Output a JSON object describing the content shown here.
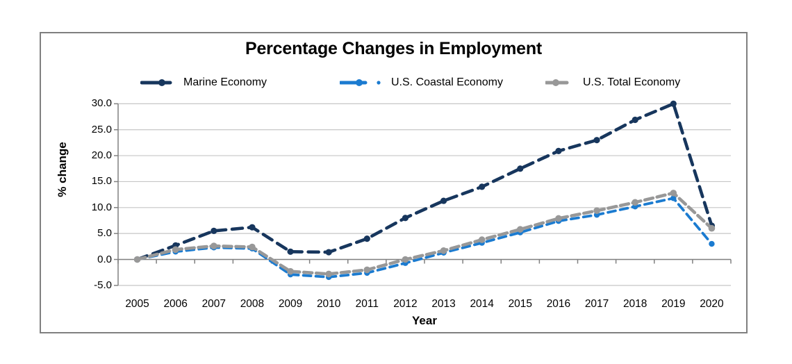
{
  "figure": {
    "title": "Percentage Changes in Employment",
    "x_axis_title": "Year",
    "y_axis_title": "% change"
  },
  "colors": {
    "marine": "#17365d",
    "coastal": "#1b7bd0",
    "total": "#989898",
    "gridline": "#c6c6c6",
    "axis": "#808080",
    "text": "#000000"
  },
  "chart_data": {
    "type": "line",
    "title": "Percentage Changes in Employment",
    "xlabel": "Year",
    "ylabel": "% change",
    "x": [
      "2005",
      "2006",
      "2007",
      "2008",
      "2009",
      "2010",
      "2011",
      "2012",
      "2013",
      "2014",
      "2015",
      "2016",
      "2017",
      "2018",
      "2019",
      "2020"
    ],
    "y_ticks": [
      "30.0",
      "25.0",
      "20.0",
      "15.0",
      "10.0",
      "5.0",
      "0.0",
      "-5.0"
    ],
    "ylim": [
      -5,
      30
    ],
    "grid": "horizontal",
    "legend_position": "top",
    "line_style": "dashed-with-round-markers",
    "series": [
      {
        "name": "Marine Economy",
        "color": "#17365d",
        "values": [
          0.0,
          2.7,
          5.5,
          6.2,
          1.5,
          1.4,
          4.0,
          8.0,
          11.3,
          14.0,
          17.5,
          20.9,
          23.0,
          26.9,
          30.0,
          6.5
        ]
      },
      {
        "name": "U.S. Coastal Economy",
        "color": "#1b7bd0",
        "values": [
          0.0,
          1.5,
          2.3,
          2.1,
          -2.9,
          -3.4,
          -2.6,
          -0.7,
          1.3,
          3.2,
          5.2,
          7.4,
          8.6,
          10.2,
          11.8,
          3.0
        ]
      },
      {
        "name": "U.S. Total Economy",
        "color": "#989898",
        "values": [
          0.0,
          1.9,
          2.6,
          2.4,
          -2.3,
          -2.8,
          -2.0,
          0.0,
          1.7,
          3.8,
          5.8,
          7.9,
          9.4,
          11.0,
          12.8,
          6.0
        ]
      }
    ]
  }
}
